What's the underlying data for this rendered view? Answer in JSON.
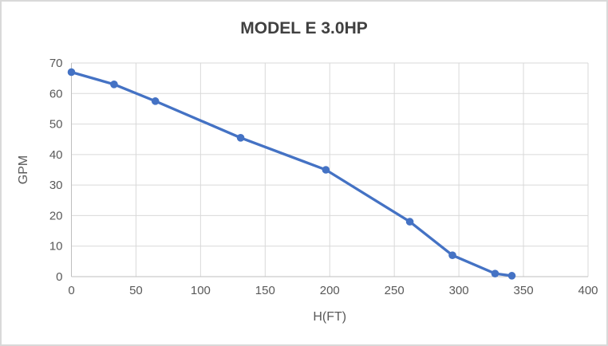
{
  "chart_data": {
    "type": "line",
    "title": "MODEL E 3.0HP",
    "xlabel": "H(FT)",
    "ylabel": "GPM",
    "x": [
      0,
      33,
      65,
      131,
      197,
      262,
      295,
      328,
      341
    ],
    "y": [
      67,
      63,
      57.5,
      45.5,
      35,
      18,
      7,
      1,
      0.3
    ],
    "xlim": [
      0,
      400
    ],
    "ylim": [
      0,
      70
    ],
    "x_ticks": [
      0,
      50,
      100,
      150,
      200,
      250,
      300,
      350,
      400
    ],
    "y_ticks": [
      0,
      10,
      20,
      30,
      40,
      50,
      60,
      70
    ],
    "grid": true,
    "legend": false,
    "marker": "circle",
    "colors": {
      "line": "#4472C4",
      "marker": "#4472C4",
      "gridline": "#D9D9D9",
      "axis_line": "#BFBFBF",
      "tick_label": "#595959",
      "axis_title": "#595959",
      "title": "#404040",
      "background": "#FFFFFF",
      "canvas_border": "#D9D9D9"
    }
  }
}
